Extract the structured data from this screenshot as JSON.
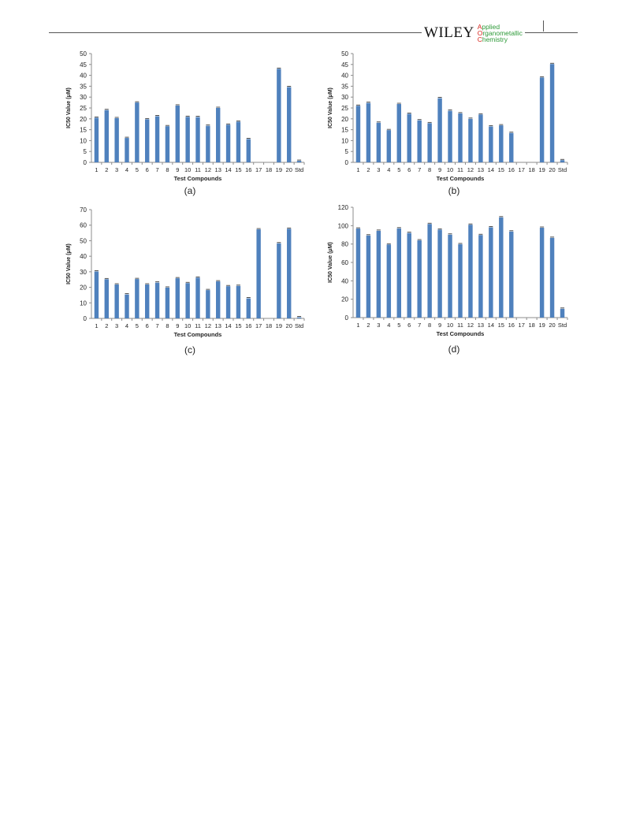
{
  "header": {
    "publisher": "WILEY",
    "journal_lines": [
      {
        "first": "A",
        "rest": "pplied"
      },
      {
        "first": "O",
        "rest": "rganometallic"
      },
      {
        "first": "C",
        "rest": "hemistry"
      }
    ],
    "colors": {
      "publisher": "#111111",
      "journal_first": "#d7261e",
      "journal_rest": "#2e9a39"
    }
  },
  "colors": {
    "bar": "#4f81bd",
    "axis": "#8c8c8c",
    "text": "#222222"
  },
  "chart_data": [
    {
      "type": "bar",
      "panel_label": "(a)",
      "xlabel": "Test Compounds",
      "ylabel": "IC50 Value (μM)",
      "ylim": [
        0,
        50
      ],
      "yticks": [
        0,
        5,
        10,
        15,
        20,
        25,
        30,
        35,
        40,
        45,
        50
      ],
      "categories": [
        "1",
        "2",
        "3",
        "4",
        "5",
        "6",
        "7",
        "8",
        "9",
        "10",
        "11",
        "12",
        "13",
        "14",
        "15",
        "16",
        "17",
        "18",
        "19",
        "20",
        "Std"
      ],
      "values": [
        20.5,
        24.0,
        20.3,
        11.2,
        27.5,
        19.8,
        21.2,
        16.6,
        26.1,
        20.9,
        20.8,
        16.8,
        25.0,
        17.3,
        18.7,
        10.7,
        null,
        null,
        43.0,
        34.6,
        0.7
      ],
      "grid": false,
      "legend": "none"
    },
    {
      "type": "bar",
      "panel_label": "(b)",
      "xlabel": "Test Compounds",
      "ylabel": "IC50 Value (μM)",
      "ylim": [
        0,
        50
      ],
      "yticks": [
        0,
        5,
        10,
        15,
        20,
        25,
        30,
        35,
        40,
        45,
        50
      ],
      "categories": [
        "1",
        "2",
        "3",
        "4",
        "5",
        "6",
        "7",
        "8",
        "9",
        "10",
        "11",
        "12",
        "13",
        "14",
        "15",
        "16",
        "17",
        "18",
        "19",
        "20",
        "Std"
      ],
      "values": [
        26.0,
        27.3,
        18.2,
        14.8,
        26.8,
        22.3,
        19.3,
        18.0,
        29.5,
        23.7,
        22.5,
        20.0,
        22.0,
        16.5,
        17.0,
        13.5,
        null,
        null,
        39.0,
        45.2,
        1.0
      ],
      "grid": false,
      "legend": "none"
    },
    {
      "type": "bar",
      "panel_label": "(c)",
      "xlabel": "Test Compounds",
      "ylabel": "IC50 Value (μM)",
      "ylim": [
        0,
        70
      ],
      "yticks": [
        0,
        10,
        20,
        30,
        40,
        50,
        60,
        70
      ],
      "categories": [
        "1",
        "2",
        "3",
        "4",
        "5",
        "6",
        "7",
        "8",
        "9",
        "10",
        "11",
        "12",
        "13",
        "14",
        "15",
        "16",
        "17",
        "18",
        "19",
        "20",
        "Std"
      ],
      "values": [
        30.2,
        25.2,
        21.8,
        15.4,
        25.3,
        21.8,
        23.0,
        19.8,
        25.8,
        22.7,
        26.2,
        18.2,
        23.8,
        20.7,
        20.9,
        12.9,
        57.3,
        null,
        48.3,
        57.7,
        0.7
      ],
      "grid": false,
      "legend": "none"
    },
    {
      "type": "bar",
      "panel_label": "(d)",
      "xlabel": "Test Compounds",
      "ylabel": "IC50 Value (μM)",
      "ylim": [
        0,
        120
      ],
      "yticks": [
        0,
        20,
        40,
        60,
        80,
        100,
        120
      ],
      "categories": [
        "1",
        "2",
        "3",
        "4",
        "5",
        "6",
        "7",
        "8",
        "9",
        "10",
        "11",
        "12",
        "13",
        "14",
        "15",
        "16",
        "17",
        "18",
        "19",
        "20",
        "Std"
      ],
      "values": [
        96.8,
        89.3,
        94.4,
        79.5,
        97.0,
        92.0,
        84.0,
        101.8,
        95.7,
        90.2,
        79.8,
        101.0,
        89.8,
        98.2,
        109.0,
        93.6,
        null,
        null,
        97.7,
        86.7,
        9.6
      ],
      "grid": false,
      "legend": "none"
    }
  ]
}
